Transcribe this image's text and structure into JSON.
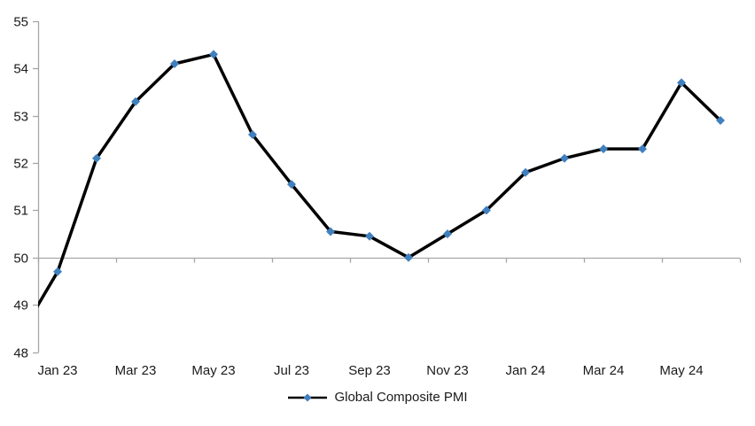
{
  "chart_data": {
    "type": "line",
    "title": "",
    "series_name": "Global Composite PMI",
    "categories": [
      "Jan 23",
      "Feb 23",
      "Mar 23",
      "Apr 23",
      "May 23",
      "Jun 23",
      "Jul 23",
      "Aug 23",
      "Sep 23",
      "Oct 23",
      "Nov 23",
      "Dec 23",
      "Jan 24",
      "Feb 24",
      "Mar 24",
      "Apr 24",
      "May 24",
      "Jun 24"
    ],
    "values": [
      49.7,
      52.1,
      53.3,
      54.1,
      54.3,
      52.6,
      51.55,
      50.55,
      50.45,
      50.0,
      50.5,
      51.0,
      51.8,
      52.1,
      52.3,
      52.3,
      53.7,
      52.9
    ],
    "lead_in_point": {
      "category": "Dec 22",
      "value": 48.3,
      "partially_visible": true
    },
    "x_tick_labels": [
      "Jan 23",
      "Mar 23",
      "May 23",
      "Jul 23",
      "Sep 23",
      "Nov 23",
      "Jan 24",
      "Mar 24",
      "May 24"
    ],
    "x_label_every": 2,
    "y_ticks": [
      48,
      49,
      50,
      51,
      52,
      53,
      54,
      55
    ],
    "ylim": [
      48,
      55
    ],
    "x_axis_cross_value": 50,
    "grid": false,
    "legend_position": "bottom-center",
    "marker": "diamond",
    "marker_size": 5,
    "line_width": 3.5,
    "colors": {
      "line": "#000000",
      "marker": "#4080BE",
      "axis": "#A6A6A6",
      "text": "#1A1A1A",
      "background": "#FFFFFF"
    }
  }
}
